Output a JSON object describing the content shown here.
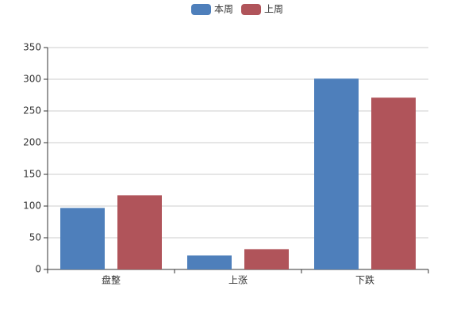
{
  "chart_data": {
    "type": "bar",
    "categories": [
      "盘整",
      "上涨",
      "下跌"
    ],
    "series": [
      {
        "name": "本周",
        "color": "#4e7fbb",
        "values": [
          97,
          22,
          301
        ]
      },
      {
        "name": "上周",
        "color": "#b0545a",
        "values": [
          117,
          32,
          271
        ]
      }
    ],
    "ylim": [
      0,
      350
    ],
    "yticks": [
      0,
      50,
      100,
      150,
      200,
      250,
      300,
      350
    ],
    "grid": true,
    "legend": "top"
  }
}
